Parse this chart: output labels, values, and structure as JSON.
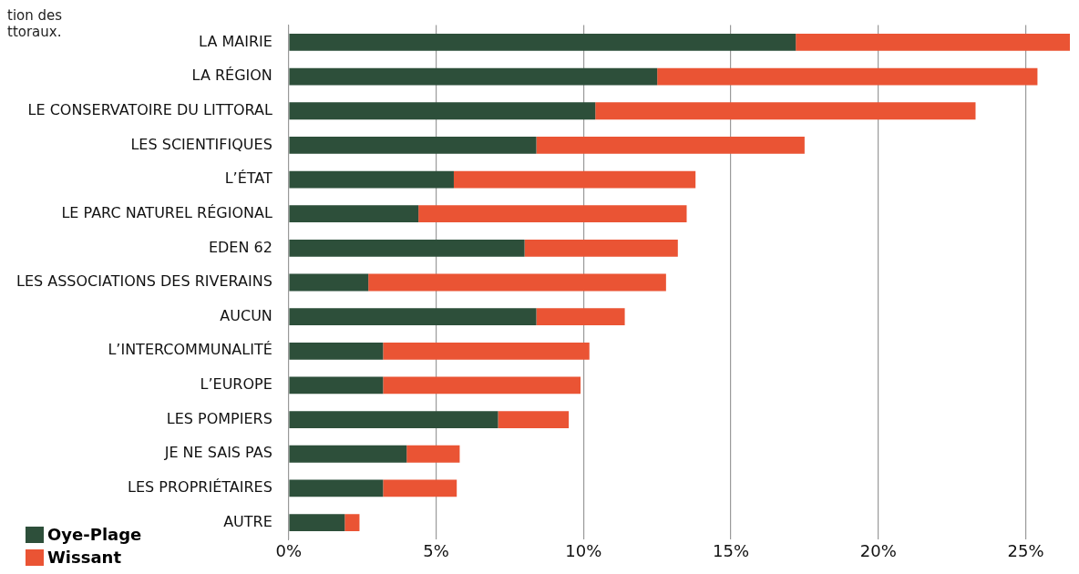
{
  "chart_data": {
    "type": "bar",
    "orientation": "horizontal",
    "stacked": true,
    "categories": [
      "LA MAIRIE",
      "LA RÉGION",
      "LE CONSERVATOIRE DU LITTORAL",
      "LES SCIENTIFIQUES",
      "L’ÉTAT",
      "LE PARC NATUREL RÉGIONAL",
      "EDEN 62",
      "LES ASSOCIATIONS DES RIVERAINS",
      "AUCUN",
      "L’INTERCOMMUNALITÉ",
      "L’EUROPE",
      "LES POMPIERS",
      "JE NE SAIS PAS",
      "LES PROPRIÉTAIRES",
      "AUTRE"
    ],
    "series": [
      {
        "name": "Oye-Plage",
        "color": "#2d4f3a",
        "values": [
          17.2,
          12.5,
          10.4,
          8.4,
          5.6,
          4.4,
          8.0,
          2.7,
          8.4,
          3.2,
          3.2,
          7.1,
          4.0,
          3.2,
          1.9
        ]
      },
      {
        "name": "Wissant",
        "color": "#ea5434",
        "values": [
          9.3,
          12.9,
          12.9,
          9.1,
          8.2,
          9.1,
          5.2,
          10.1,
          3.0,
          7.0,
          6.7,
          2.4,
          1.8,
          2.5,
          0.5
        ]
      }
    ],
    "xlim": [
      0,
      26.5
    ],
    "xticks": [
      {
        "value": 0,
        "label": "0%"
      },
      {
        "value": 5,
        "label": "5%"
      },
      {
        "value": 10,
        "label": "10%"
      },
      {
        "value": 15,
        "label": "15%"
      },
      {
        "value": 20,
        "label": "20%"
      },
      {
        "value": 25,
        "label": "25%"
      }
    ],
    "grid": "x",
    "legend": "bottom left",
    "annotations": [
      "tion des\nttoraux."
    ]
  }
}
